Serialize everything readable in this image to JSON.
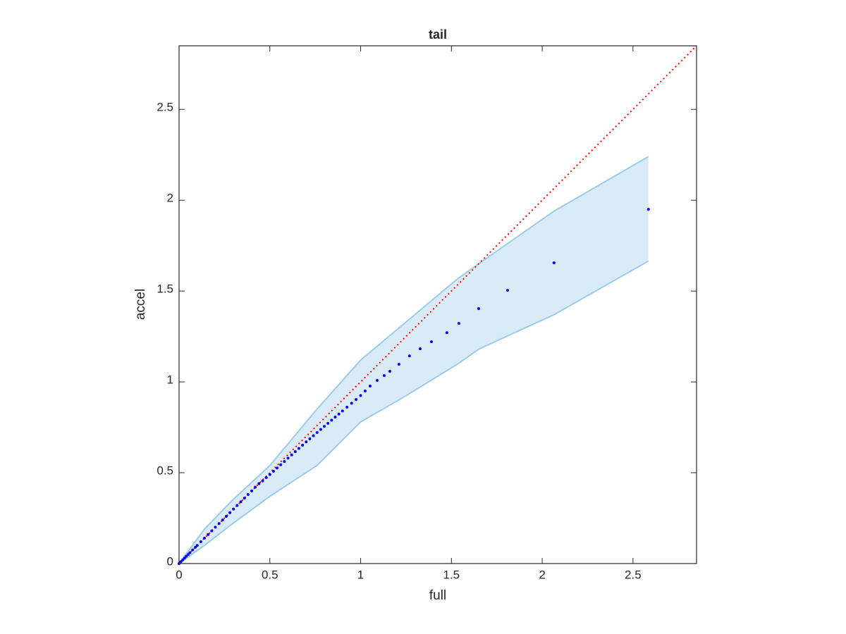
{
  "chart_data": {
    "type": "scatter",
    "title": "tail",
    "xlabel": "full",
    "ylabel": "accel",
    "xlim": [
      0,
      2.85
    ],
    "ylim": [
      0,
      2.85
    ],
    "xticks": [
      0,
      0.5,
      1,
      1.5,
      2,
      2.5
    ],
    "yticks": [
      0,
      0.5,
      1,
      1.5,
      2,
      2.5
    ],
    "series": [
      {
        "color": "#0000ff",
        "x": [
          0,
          0.01,
          0.02,
          0.03,
          0.04,
          0.05,
          0.06,
          0.075,
          0.09,
          0.1,
          0.12,
          0.14,
          0.16,
          0.18,
          0.2,
          0.22,
          0.24,
          0.26,
          0.28,
          0.3,
          0.32,
          0.34,
          0.36,
          0.38,
          0.4,
          0.42,
          0.44,
          0.46,
          0.48,
          0.5,
          0.52,
          0.54,
          0.56,
          0.58,
          0.6,
          0.62,
          0.64,
          0.66,
          0.68,
          0.7,
          0.72,
          0.74,
          0.76,
          0.78,
          0.8,
          0.82,
          0.84,
          0.86,
          0.88,
          0.9,
          0.925,
          0.95,
          0.975,
          1.0,
          1.025,
          1.052,
          1.091,
          1.13,
          1.161,
          1.211,
          1.269,
          1.328,
          1.39,
          1.475,
          1.541,
          1.65,
          1.809,
          2.065,
          2.585
        ],
        "values": [
          0,
          0.01,
          0.02,
          0.03,
          0.04,
          0.05,
          0.06,
          0.075,
          0.09,
          0.1,
          0.12,
          0.14,
          0.16,
          0.18,
          0.2,
          0.22,
          0.24,
          0.26,
          0.28,
          0.3,
          0.32,
          0.34,
          0.36,
          0.38,
          0.4,
          0.42,
          0.44,
          0.455,
          0.473,
          0.49,
          0.508,
          0.526,
          0.544,
          0.562,
          0.58,
          0.598,
          0.616,
          0.634,
          0.652,
          0.67,
          0.687,
          0.704,
          0.721,
          0.738,
          0.755,
          0.772,
          0.789,
          0.806,
          0.823,
          0.84,
          0.861,
          0.882,
          0.903,
          0.925,
          0.95,
          0.977,
          1.008,
          1.035,
          1.058,
          1.097,
          1.143,
          1.182,
          1.221,
          1.271,
          1.322,
          1.403,
          1.504,
          1.655,
          1.95
        ]
      }
    ],
    "band": {
      "color": "#9ccbe8",
      "x": [
        0,
        0.14,
        0.295,
        0.5,
        0.76,
        1.0,
        1.227,
        1.537,
        1.65,
        2.065,
        2.585
      ],
      "upper": [
        0,
        0.19,
        0.35,
        0.54,
        0.85,
        1.12,
        1.31,
        1.57,
        1.65,
        1.94,
        2.24
      ],
      "lower": [
        0,
        0.1,
        0.22,
        0.37,
        0.54,
        0.78,
        0.91,
        1.1,
        1.18,
        1.37,
        1.665
      ]
    },
    "reference_line": {
      "color": "#ff0000",
      "x": [
        0,
        2.85
      ],
      "values": [
        0,
        2.85
      ]
    }
  }
}
